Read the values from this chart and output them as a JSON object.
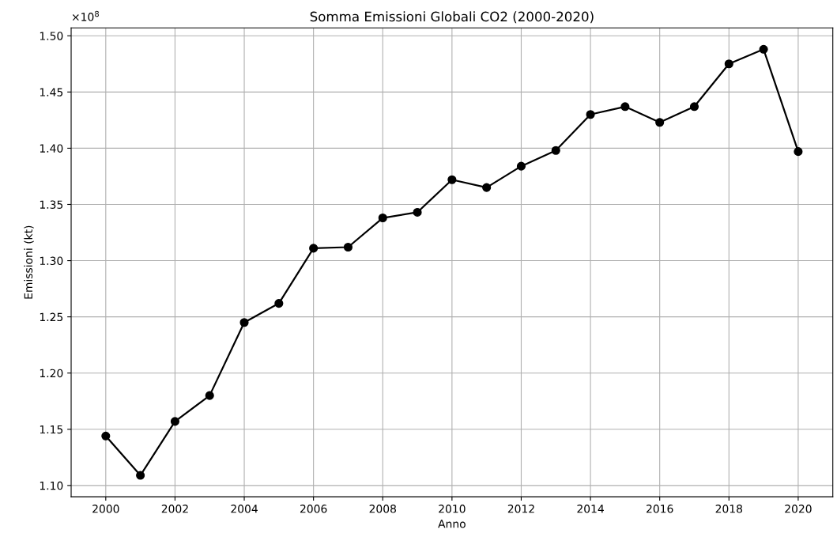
{
  "chart_data": {
    "type": "line",
    "title": "Somma Emissioni Globali CO2 (2000-2020)",
    "xlabel": "Anno",
    "ylabel": "Emissioni (kt)",
    "annotations": [
      "×10$^{8}$"
    ],
    "x": [
      2000,
      2001,
      2002,
      2003,
      2004,
      2005,
      2006,
      2007,
      2008,
      2009,
      2010,
      2011,
      2012,
      2013,
      2014,
      2015,
      2016,
      2017,
      2018,
      2019,
      2020
    ],
    "series": [
      {
        "color": "#000000",
        "values": [
          1.144,
          1.109,
          1.157,
          1.18,
          1.245,
          1.262,
          1.311,
          1.312,
          1.338,
          1.343,
          1.372,
          1.365,
          1.384,
          1.398,
          1.43,
          1.437,
          1.423,
          1.437,
          1.475,
          1.488,
          1.397
        ]
      }
    ],
    "xlim": [
      1999,
      2021
    ],
    "xticks": [
      2000,
      2002,
      2004,
      2006,
      2008,
      2010,
      2012,
      2014,
      2016,
      2018,
      2020
    ],
    "ylim": [
      1.09,
      1.507
    ],
    "yticks": [
      {
        "value": 1.1,
        "label": "1.10"
      },
      {
        "value": 1.15,
        "label": "1.15"
      },
      {
        "value": 1.2,
        "label": "1.20"
      },
      {
        "value": 1.25,
        "label": "1.25"
      },
      {
        "value": 1.3,
        "label": "1.30"
      },
      {
        "value": 1.35,
        "label": "1.35"
      },
      {
        "value": 1.4,
        "label": "1.40"
      },
      {
        "value": 1.45,
        "label": "1.45"
      },
      {
        "value": 1.5,
        "label": "1.50"
      }
    ],
    "grid": true,
    "marker": "circle",
    "line_style": "solid"
  }
}
